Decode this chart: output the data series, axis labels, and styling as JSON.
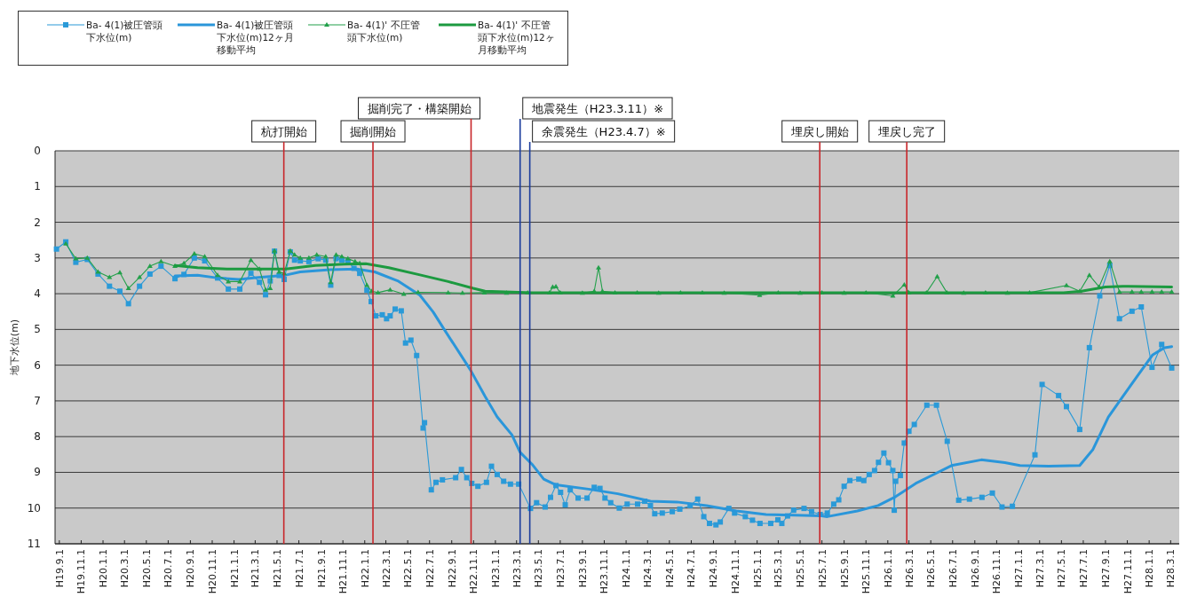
{
  "chart_data": {
    "type": "line",
    "ylabel": "地下水位(m)",
    "legend": "top left",
    "grid": "y",
    "xlim": [
      "2007-08-20",
      "2016-03-25"
    ],
    "ylim": [
      11,
      0
    ],
    "yticks": [
      0,
      1,
      2,
      3,
      4,
      5,
      6,
      7,
      8,
      9,
      10,
      11
    ],
    "xticks": [
      {
        "value": "2007-09-01",
        "label": "H19.9.1"
      },
      {
        "value": "2007-11-01",
        "label": "H19.11.1"
      },
      {
        "value": "2008-01-01",
        "label": "H20.1.1"
      },
      {
        "value": "2008-03-01",
        "label": "H20.3.1"
      },
      {
        "value": "2008-05-01",
        "label": "H20.5.1"
      },
      {
        "value": "2008-07-01",
        "label": "H20.7.1"
      },
      {
        "value": "2008-09-01",
        "label": "H20.9.1"
      },
      {
        "value": "2008-11-01",
        "label": "H20.11.1"
      },
      {
        "value": "2009-01-01",
        "label": "H21.1.1"
      },
      {
        "value": "2009-03-01",
        "label": "H21.3.1"
      },
      {
        "value": "2009-05-01",
        "label": "H21.5.1"
      },
      {
        "value": "2009-07-01",
        "label": "H21.7.1"
      },
      {
        "value": "2009-09-01",
        "label": "H21.9.1"
      },
      {
        "value": "2009-11-01",
        "label": "H21.11.1"
      },
      {
        "value": "2010-01-01",
        "label": "H22.1.1"
      },
      {
        "value": "2010-03-01",
        "label": "H22.3.1"
      },
      {
        "value": "2010-05-01",
        "label": "H22.5.1"
      },
      {
        "value": "2010-07-01",
        "label": "H22.7.1"
      },
      {
        "value": "2010-09-01",
        "label": "H22.9.1"
      },
      {
        "value": "2010-11-01",
        "label": "H22.11.1"
      },
      {
        "value": "2011-01-01",
        "label": "H23.1.1"
      },
      {
        "value": "2011-03-01",
        "label": "H23.3.1"
      },
      {
        "value": "2011-05-01",
        "label": "H23.5.1"
      },
      {
        "value": "2011-07-01",
        "label": "H23.7.1"
      },
      {
        "value": "2011-09-01",
        "label": "H23.9.1"
      },
      {
        "value": "2011-11-01",
        "label": "H23.11.1"
      },
      {
        "value": "2012-01-01",
        "label": "H24.1.1"
      },
      {
        "value": "2012-03-01",
        "label": "H24.3.1"
      },
      {
        "value": "2012-05-01",
        "label": "H24.5.1"
      },
      {
        "value": "2012-07-01",
        "label": "H24.7.1"
      },
      {
        "value": "2012-09-01",
        "label": "H24.9.1"
      },
      {
        "value": "2012-11-01",
        "label": "H24.11.1"
      },
      {
        "value": "2013-01-01",
        "label": "H25.1.1"
      },
      {
        "value": "2013-03-01",
        "label": "H25.3.1"
      },
      {
        "value": "2013-05-01",
        "label": "H25.5.1"
      },
      {
        "value": "2013-07-01",
        "label": "H25.7.1"
      },
      {
        "value": "2013-09-01",
        "label": "H25.9.1"
      },
      {
        "value": "2013-11-01",
        "label": "H25.11.1"
      },
      {
        "value": "2014-01-01",
        "label": "H26.1.1"
      },
      {
        "value": "2014-03-01",
        "label": "H26.3.1"
      },
      {
        "value": "2014-05-01",
        "label": "H26.5.1"
      },
      {
        "value": "2014-07-01",
        "label": "H26.7.1"
      },
      {
        "value": "2014-09-01",
        "label": "H26.9.1"
      },
      {
        "value": "2014-11-01",
        "label": "H26.11.1"
      },
      {
        "value": "2015-01-01",
        "label": "H27.1.1"
      },
      {
        "value": "2015-03-01",
        "label": "H27.3.1"
      },
      {
        "value": "2015-05-01",
        "label": "H27.5.1"
      },
      {
        "value": "2015-07-01",
        "label": "H27.7.1"
      },
      {
        "value": "2015-09-01",
        "label": "H27.9.1"
      },
      {
        "value": "2015-11-01",
        "label": "H27.11.1"
      },
      {
        "value": "2016-01-01",
        "label": "H28.1.1"
      },
      {
        "value": "2016-03-01",
        "label": "H28.3.1"
      }
    ],
    "ref_lines": [
      {
        "axis": "x",
        "value": "2009-05-20",
        "label": "杭打開始",
        "color": "#c8262a"
      },
      {
        "axis": "x",
        "value": "2010-01-24",
        "label": "掘削開始",
        "color": "#c8262a"
      },
      {
        "axis": "x",
        "value": "2010-10-25",
        "label": "掘削完了・構築開始",
        "color": "#c8262a"
      },
      {
        "axis": "x",
        "value": "2011-03-11",
        "label": "地震発生（H23.3.11）※",
        "color": "#1c3c9c"
      },
      {
        "axis": "x",
        "value": "2011-04-07",
        "label": "余震発生（H23.4.7）※",
        "color": "#1c3c9c"
      },
      {
        "axis": "x",
        "value": "2013-06-25",
        "label": "埋戻し開始",
        "color": "#c8262a"
      },
      {
        "axis": "x",
        "value": "2014-02-23",
        "label": "埋戻し完了",
        "color": "#c8262a"
      }
    ],
    "series": [
      {
        "name": "Ba- 4(1)被圧管頭下水位(m)",
        "color": "#2a9ad8",
        "marker": "square",
        "x": [
          "2007-08-24",
          "2007-09-19",
          "2007-10-17",
          "2007-11-18",
          "2007-12-18",
          "2008-01-19",
          "2008-02-17",
          "2008-03-12",
          "2008-04-12",
          "2008-05-11",
          "2008-06-11",
          "2008-07-20",
          "2008-08-14",
          "2008-09-12",
          "2008-10-11",
          "2008-11-16",
          "2008-12-16",
          "2009-01-17",
          "2009-02-17",
          "2009-03-13",
          "2009-03-30",
          "2009-04-12",
          "2009-04-24",
          "2009-05-07",
          "2009-05-21",
          "2009-06-07",
          "2009-06-19",
          "2009-07-05",
          "2009-07-29",
          "2009-08-24",
          "2009-09-14",
          "2009-09-28",
          "2009-10-13",
          "2009-10-29",
          "2009-11-15",
          "2009-12-02",
          "2009-12-18",
          "2010-01-07",
          "2010-01-19",
          "2010-02-01",
          "2010-02-19",
          "2010-03-03",
          "2010-03-13",
          "2010-03-27",
          "2010-04-13",
          "2010-04-25",
          "2010-05-10",
          "2010-05-26",
          "2010-06-13",
          "2010-06-17",
          "2010-07-06",
          "2010-07-19",
          "2010-08-06",
          "2010-09-12",
          "2010-09-28",
          "2010-10-13",
          "2010-10-27",
          "2010-11-13",
          "2010-12-07",
          "2010-12-21",
          "2011-01-06",
          "2011-01-24",
          "2011-02-12",
          "2011-03-07",
          "2011-04-09",
          "2011-04-26",
          "2011-05-20",
          "2011-06-04",
          "2011-06-19",
          "2011-07-02",
          "2011-07-15",
          "2011-07-29",
          "2011-08-20",
          "2011-09-14",
          "2011-10-04",
          "2011-10-20",
          "2011-11-03",
          "2011-11-19",
          "2011-12-13",
          "2012-01-04",
          "2012-02-02",
          "2012-02-22",
          "2012-03-09",
          "2012-03-21",
          "2012-04-11",
          "2012-05-09",
          "2012-05-30",
          "2012-06-28",
          "2012-07-19",
          "2012-08-05",
          "2012-08-21",
          "2012-09-08",
          "2012-09-20",
          "2012-10-14",
          "2012-10-30",
          "2012-11-29",
          "2012-12-19",
          "2013-01-09",
          "2013-02-08",
          "2013-02-28",
          "2013-03-11",
          "2013-03-27",
          "2013-04-13",
          "2013-05-12",
          "2013-06-02",
          "2013-06-26",
          "2013-07-16",
          "2013-08-03",
          "2013-08-17",
          "2013-09-01",
          "2013-09-17",
          "2013-10-12",
          "2013-10-26",
          "2013-11-10",
          "2013-11-25",
          "2013-12-06",
          "2013-12-21",
          "2014-01-03",
          "2014-01-15",
          "2014-01-19",
          "2014-01-23",
          "2014-02-05",
          "2014-02-16",
          "2014-03-01",
          "2014-03-16",
          "2014-04-20",
          "2014-05-17",
          "2014-06-16",
          "2014-07-18",
          "2014-08-17",
          "2014-09-21",
          "2014-10-20",
          "2014-11-16",
          "2014-12-15",
          "2015-02-16",
          "2015-03-08",
          "2015-04-23",
          "2015-05-15",
          "2015-06-21",
          "2015-07-18",
          "2015-08-16",
          "2015-09-13",
          "2015-10-10",
          "2015-11-14",
          "2015-12-10",
          "2016-01-09",
          "2016-02-05",
          "2016-03-04"
        ],
        "values": [
          2.75,
          2.55,
          3.12,
          3.04,
          3.45,
          3.79,
          3.93,
          4.28,
          3.79,
          3.45,
          3.23,
          3.58,
          3.46,
          3.0,
          3.08,
          3.56,
          3.87,
          3.87,
          3.43,
          3.68,
          4.03,
          3.64,
          2.81,
          3.49,
          3.6,
          2.83,
          3.06,
          3.08,
          3.1,
          3.02,
          3.06,
          3.76,
          3.02,
          3.06,
          3.1,
          3.29,
          3.43,
          3.9,
          4.22,
          4.62,
          4.59,
          4.7,
          4.62,
          4.43,
          4.48,
          5.38,
          5.3,
          5.73,
          7.76,
          7.61,
          9.49,
          9.28,
          9.21,
          9.15,
          8.92,
          9.15,
          9.31,
          9.39,
          9.28,
          8.83,
          9.06,
          9.25,
          9.33,
          9.33,
          10.01,
          9.85,
          9.97,
          9.7,
          9.37,
          9.56,
          9.91,
          9.49,
          9.72,
          9.72,
          9.42,
          9.45,
          9.72,
          9.85,
          10.0,
          9.89,
          9.89,
          9.81,
          9.93,
          10.16,
          10.14,
          10.1,
          10.03,
          9.93,
          9.75,
          10.24,
          10.43,
          10.47,
          10.39,
          10.01,
          10.14,
          10.24,
          10.34,
          10.43,
          10.43,
          10.33,
          10.43,
          10.22,
          10.06,
          10.01,
          10.1,
          10.18,
          10.14,
          9.89,
          9.77,
          9.39,
          9.23,
          9.19,
          9.23,
          9.06,
          8.95,
          8.72,
          8.46,
          8.73,
          8.95,
          10.06,
          9.25,
          9.09,
          8.18,
          7.85,
          7.66,
          7.12,
          7.12,
          8.13,
          9.78,
          9.75,
          9.7,
          9.58,
          9.97,
          9.95,
          8.51,
          6.54,
          6.85,
          7.16,
          7.8,
          5.51,
          4.06,
          3.21,
          4.7,
          4.49,
          4.37,
          6.06,
          5.42,
          6.08
        ]
      },
      {
        "name": "Ba- 4(1)被圧管頭下水位(m)12ヶ月移動平均",
        "color": "#2a96da",
        "marker": "none",
        "x": [
          "2008-07-20",
          "2008-09-21",
          "2008-11-17",
          "2009-01-14",
          "2009-03-03",
          "2009-05-25",
          "2009-07-05",
          "2009-09-26",
          "2009-12-10",
          "2010-01-29",
          "2010-04-03",
          "2010-06-04",
          "2010-07-11",
          "2010-08-09",
          "2010-10-23",
          "2010-12-03",
          "2011-01-06",
          "2011-02-16",
          "2011-03-11",
          "2011-04-13",
          "2011-05-16",
          "2011-06-19",
          "2011-09-18",
          "2011-12-09",
          "2012-03-09",
          "2012-05-22",
          "2012-08-13",
          "2012-11-04",
          "2013-01-26",
          "2013-04-17",
          "2013-06-30",
          "2013-07-16",
          "2013-10-08",
          "2013-12-05",
          "2014-01-23",
          "2014-03-20",
          "2014-05-01",
          "2014-06-28",
          "2014-09-19",
          "2014-11-24",
          "2015-01-05",
          "2015-03-26",
          "2015-06-21",
          "2015-07-28",
          "2015-09-09",
          "2015-10-20",
          "2015-11-30",
          "2016-01-11",
          "2016-02-13",
          "2016-03-04"
        ],
        "values": [
          3.5,
          3.48,
          3.56,
          3.6,
          3.55,
          3.48,
          3.39,
          3.33,
          3.31,
          3.39,
          3.64,
          4.04,
          4.51,
          4.97,
          6.13,
          6.87,
          7.45,
          7.95,
          8.44,
          8.77,
          9.19,
          9.35,
          9.47,
          9.6,
          9.81,
          9.83,
          9.93,
          10.08,
          10.18,
          10.2,
          10.22,
          10.24,
          10.08,
          9.93,
          9.68,
          9.31,
          9.1,
          8.81,
          8.65,
          8.73,
          8.81,
          8.83,
          8.81,
          8.36,
          7.45,
          6.87,
          6.29,
          5.71,
          5.51,
          5.48
        ]
      },
      {
        "name": "Ba- 4(1)' 不圧管頭下水位(m)",
        "color": "#22a04a",
        "marker": "triangle",
        "x": [
          "2007-09-19",
          "2007-10-17",
          "2007-11-18",
          "2007-12-18",
          "2008-01-19",
          "2008-02-17",
          "2008-03-12",
          "2008-04-12",
          "2008-05-11",
          "2008-06-11",
          "2008-07-20",
          "2008-08-14",
          "2008-09-12",
          "2008-10-11",
          "2008-11-16",
          "2008-12-16",
          "2009-01-17",
          "2009-02-17",
          "2009-03-13",
          "2009-03-30",
          "2009-04-12",
          "2009-04-24",
          "2009-05-07",
          "2009-05-21",
          "2009-06-07",
          "2009-06-19",
          "2009-07-05",
          "2009-07-29",
          "2009-08-20",
          "2009-09-14",
          "2009-09-28",
          "2009-10-13",
          "2009-10-29",
          "2009-11-15",
          "2009-12-05",
          "2009-12-18",
          "2010-01-07",
          "2010-01-20",
          "2010-02-07",
          "2010-03-13",
          "2010-04-20",
          "2010-05-30",
          "2010-08-22",
          "2010-10-01",
          "2010-12-01",
          "2011-02-01",
          "2011-04-01",
          "2011-06-01",
          "2011-06-10",
          "2011-06-19",
          "2011-07-01",
          "2011-09-01",
          "2011-10-04",
          "2011-10-16",
          "2011-10-27",
          "2011-12-01",
          "2012-02-01",
          "2012-04-01",
          "2012-06-01",
          "2012-08-01",
          "2012-10-01",
          "2013-01-08",
          "2013-03-01",
          "2013-05-01",
          "2013-07-01",
          "2013-09-01",
          "2013-11-01",
          "2014-01-15",
          "2014-02-16",
          "2014-03-01",
          "2014-04-19",
          "2014-05-19",
          "2014-06-15",
          "2014-08-01",
          "2014-10-01",
          "2014-12-01",
          "2015-02-01",
          "2015-05-15",
          "2015-06-21",
          "2015-07-18",
          "2015-08-14",
          "2015-09-13",
          "2015-10-10",
          "2015-11-14",
          "2015-12-10",
          "2016-01-09",
          "2016-02-05",
          "2016-03-04"
        ],
        "values": [
          2.6,
          3.02,
          3.0,
          3.39,
          3.54,
          3.41,
          3.85,
          3.54,
          3.23,
          3.1,
          3.23,
          3.15,
          2.88,
          2.96,
          3.48,
          3.66,
          3.66,
          3.06,
          3.31,
          3.89,
          3.85,
          2.8,
          3.39,
          3.43,
          2.8,
          2.91,
          3.0,
          3.0,
          2.91,
          2.96,
          3.68,
          2.91,
          2.96,
          3.02,
          3.1,
          3.15,
          3.76,
          3.93,
          3.97,
          3.89,
          4.01,
          3.96,
          3.97,
          3.98,
          3.97,
          3.98,
          3.97,
          3.97,
          3.81,
          3.8,
          3.97,
          3.98,
          3.93,
          3.27,
          3.93,
          3.97,
          3.97,
          3.98,
          3.97,
          3.97,
          3.98,
          4.04,
          3.97,
          3.98,
          3.97,
          3.98,
          3.97,
          4.06,
          3.75,
          3.97,
          3.97,
          3.52,
          3.97,
          3.98,
          3.97,
          3.98,
          3.97,
          3.77,
          3.93,
          3.48,
          3.81,
          3.1,
          3.95,
          3.95,
          3.95,
          3.95,
          3.95,
          3.95
        ]
      },
      {
        "name": "Ba- 4(1)' 不圧管頭下水位(m)12ヶ月移動平均",
        "color": "#1c9a40",
        "marker": "none",
        "x": [
          "2008-07-20",
          "2008-09-21",
          "2008-12-12",
          "2009-03-03",
          "2009-05-25",
          "2009-08-16",
          "2009-11-07",
          "2010-01-04",
          "2010-03-09",
          "2010-05-30",
          "2010-08-22",
          "2010-10-31",
          "2010-12-03",
          "2011-04-13",
          "2012-08-21",
          "2013-12-29",
          "2015-05-07",
          "2015-06-26",
          "2015-09-01",
          "2015-10-20",
          "2016-03-04"
        ],
        "values": [
          3.21,
          3.27,
          3.31,
          3.31,
          3.31,
          3.21,
          3.17,
          3.16,
          3.27,
          3.46,
          3.66,
          3.85,
          3.93,
          3.97,
          3.97,
          3.97,
          3.97,
          3.93,
          3.81,
          3.79,
          3.81
        ]
      }
    ]
  }
}
